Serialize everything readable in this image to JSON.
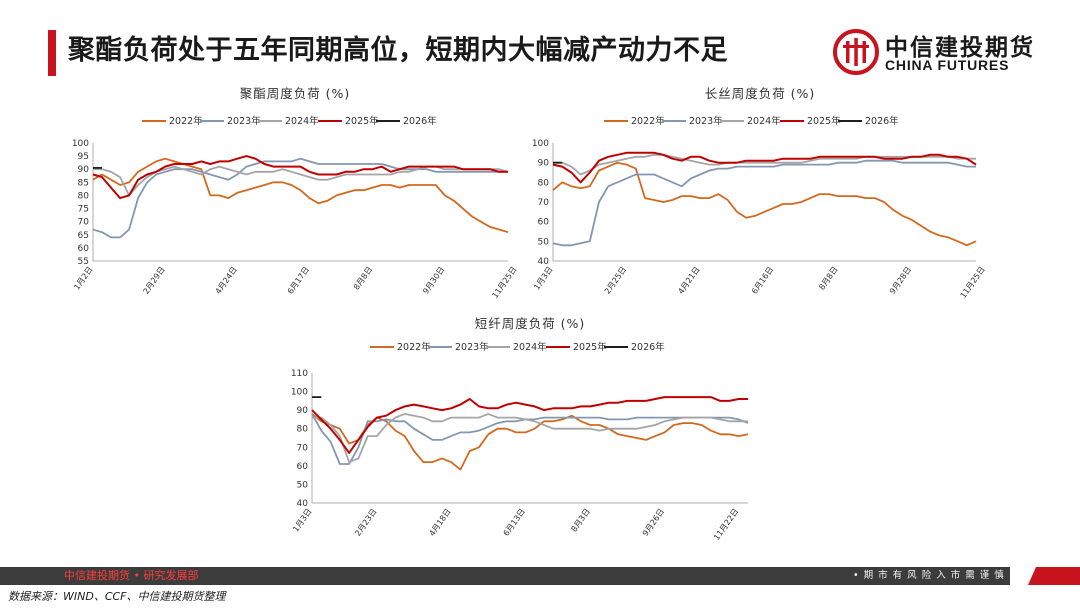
{
  "page_title": "聚酯负荷处于五年同期高位，短期内大幅减产动力不足",
  "logo": {
    "cn": "中信建投期货",
    "en": "CHINA FUTURES",
    "icon": "citic-logo-icon"
  },
  "footer": {
    "left": "中信建投期货 • 研究发展部",
    "right": "• 期 市 有 风 险    入 市 需 谨 慎",
    "source": "数据来源：WIND、CCF、中信建投期货整理"
  },
  "colors": {
    "2022年": "#d2691e",
    "2023年": "#8497b0",
    "2024年": "#a5a5a5",
    "2025年": "#c00000",
    "2026年": "#1f1f1f",
    "brand_red": "#c8141e"
  },
  "chart_data": [
    {
      "type": "line",
      "title": "聚酯周度负荷 (%)",
      "x_tick_labels": [
        "1月2日",
        "2月29日",
        "4月24日",
        "6月17日",
        "8月8日",
        "9月30日",
        "11月25日"
      ],
      "x_tick_weeks": [
        0,
        8,
        16,
        24,
        31,
        39,
        47
      ],
      "ylim": [
        55,
        100
      ],
      "yticks": [
        55,
        60,
        65,
        70,
        75,
        80,
        85,
        90,
        95,
        100
      ],
      "legend": "top",
      "grid": false,
      "series": [
        {
          "name": "2022年",
          "values": [
            86,
            88,
            86,
            84,
            85,
            89,
            91,
            93,
            94,
            93,
            92,
            91,
            90,
            80,
            80,
            79,
            81,
            82,
            83,
            84,
            85,
            85,
            84,
            82,
            79,
            77,
            78,
            80,
            81,
            82,
            82,
            83,
            84,
            84,
            83,
            84,
            84,
            84,
            84,
            80,
            78,
            75,
            72,
            70,
            68,
            67,
            66
          ]
        },
        {
          "name": "2023年",
          "values": [
            67,
            66,
            64,
            64,
            67,
            79,
            85,
            88,
            89,
            90,
            90,
            90,
            89,
            88,
            87,
            86,
            88,
            91,
            92,
            93,
            93,
            93,
            93,
            94,
            93,
            92,
            92,
            92,
            92,
            92,
            92,
            92,
            92,
            91,
            90,
            90,
            90,
            90,
            89,
            89,
            89,
            89,
            89,
            89,
            89,
            89,
            89
          ]
        },
        {
          "name": "2024年",
          "values": [
            90,
            90,
            89,
            87,
            80,
            84,
            87,
            89,
            90,
            91,
            90,
            89,
            88,
            90,
            91,
            90,
            89,
            88,
            89,
            89,
            89,
            90,
            89,
            88,
            87,
            86,
            86,
            87,
            88,
            88,
            88,
            88,
            88,
            88,
            89,
            89,
            90,
            91,
            91,
            90,
            90,
            90,
            90,
            90,
            90,
            90,
            89
          ]
        },
        {
          "name": "2025年",
          "values": [
            88,
            87,
            83,
            79,
            80,
            86,
            88,
            89,
            91,
            92,
            92,
            92,
            93,
            92,
            93,
            93,
            94,
            95,
            94,
            92,
            91,
            91,
            91,
            91,
            89,
            88,
            88,
            88,
            89,
            89,
            90,
            90,
            91,
            89,
            90,
            91,
            91,
            91,
            91,
            91,
            91,
            90,
            90,
            90,
            90,
            89,
            89
          ]
        },
        {
          "name": "2026年",
          "values": [
            90.5,
            90.5
          ]
        }
      ]
    },
    {
      "type": "line",
      "title": "长丝周度负荷 (%)",
      "x_tick_labels": [
        "1月3日",
        "2月25日",
        "4月21日",
        "6月16日",
        "8月8日",
        "9月28日",
        "11月25日"
      ],
      "x_tick_weeks": [
        0,
        8,
        16,
        24,
        31,
        39,
        47
      ],
      "ylim": [
        40,
        100
      ],
      "yticks": [
        40,
        50,
        60,
        70,
        80,
        90,
        100
      ],
      "legend": "top",
      "grid": false,
      "series": [
        {
          "name": "2022年",
          "values": [
            76,
            80,
            78,
            77,
            78,
            86,
            88,
            90,
            89,
            87,
            72,
            71,
            70,
            71,
            73,
            73,
            72,
            72,
            74,
            71,
            65,
            62,
            63,
            65,
            67,
            69,
            69,
            70,
            72,
            74,
            74,
            73,
            73,
            73,
            72,
            72,
            70,
            66,
            63,
            61,
            58,
            55,
            53,
            52,
            50,
            48,
            50
          ]
        },
        {
          "name": "2023年",
          "values": [
            49,
            48,
            48,
            49,
            50,
            70,
            78,
            80,
            82,
            84,
            84,
            84,
            82,
            80,
            78,
            82,
            84,
            86,
            87,
            87,
            88,
            88,
            88,
            88,
            88,
            89,
            89,
            89,
            89,
            89,
            89,
            90,
            90,
            90,
            91,
            91,
            91,
            91,
            90,
            90,
            90,
            90,
            90,
            90,
            89,
            88,
            88
          ]
        },
        {
          "name": "2024年",
          "values": [
            90,
            90,
            88,
            84,
            86,
            89,
            90,
            91,
            92,
            93,
            93,
            94,
            94,
            93,
            92,
            91,
            90,
            89,
            89,
            90,
            90,
            90,
            90,
            90,
            90,
            90,
            90,
            90,
            91,
            92,
            92,
            92,
            92,
            92,
            93,
            93,
            93,
            93,
            93,
            93,
            93,
            93,
            93,
            93,
            92,
            92,
            92
          ]
        },
        {
          "name": "2025年",
          "values": [
            89,
            88,
            85,
            80,
            85,
            91,
            93,
            94,
            95,
            95,
            95,
            95,
            94,
            92,
            91,
            93,
            93,
            91,
            90,
            90,
            90,
            91,
            91,
            91,
            91,
            92,
            92,
            92,
            92,
            93,
            93,
            93,
            93,
            93,
            93,
            93,
            92,
            92,
            92,
            93,
            93,
            94,
            94,
            93,
            93,
            92,
            89
          ]
        },
        {
          "name": "2026年",
          "values": [
            90,
            90
          ]
        }
      ]
    },
    {
      "type": "line",
      "title": "短纤周度负荷 (%)",
      "x_tick_labels": [
        "1月3日",
        "2月23日",
        "4月18日",
        "6月13日",
        "8月3日",
        "9月26日",
        "11月22日"
      ],
      "x_tick_weeks": [
        0,
        7,
        15,
        23,
        30,
        38,
        46
      ],
      "ylim": [
        40,
        110
      ],
      "yticks": [
        40,
        50,
        60,
        70,
        80,
        90,
        100,
        110
      ],
      "legend": "top",
      "grid": false,
      "series": [
        {
          "name": "2022年",
          "values": [
            88,
            84,
            82,
            80,
            72,
            74,
            82,
            86,
            84,
            79,
            76,
            68,
            62,
            62,
            64,
            62,
            58,
            68,
            70,
            77,
            80,
            80,
            78,
            78,
            80,
            84,
            84,
            85,
            87,
            84,
            82,
            82,
            80,
            77,
            76,
            75,
            74,
            76,
            78,
            82,
            83,
            83,
            82,
            79,
            77,
            77,
            76,
            77
          ]
        },
        {
          "name": "2023年",
          "values": [
            88,
            79,
            73,
            61,
            61,
            70,
            84,
            84,
            85,
            84,
            84,
            80,
            77,
            74,
            74,
            76,
            78,
            78,
            79,
            81,
            83,
            84,
            84,
            85,
            85,
            86,
            86,
            86,
            86,
            86,
            86,
            86,
            85,
            85,
            85,
            86,
            86,
            86,
            86,
            86,
            86,
            86,
            86,
            86,
            86,
            86,
            85,
            83
          ]
        },
        {
          "name": "2024年",
          "values": [
            86,
            86,
            82,
            76,
            62,
            64,
            76,
            76,
            82,
            86,
            88,
            87,
            86,
            84,
            84,
            86,
            86,
            86,
            86,
            88,
            86,
            86,
            86,
            85,
            84,
            82,
            80,
            80,
            80,
            80,
            80,
            79,
            80,
            80,
            80,
            80,
            81,
            82,
            84,
            85,
            86,
            86,
            86,
            86,
            85,
            84,
            84,
            84
          ]
        },
        {
          "name": "2025年",
          "values": [
            90,
            85,
            80,
            74,
            67,
            74,
            81,
            86,
            87,
            90,
            92,
            93,
            92,
            91,
            90,
            91,
            93,
            96,
            92,
            91,
            91,
            93,
            94,
            93,
            92,
            90,
            91,
            91,
            91,
            92,
            92,
            93,
            94,
            94,
            95,
            95,
            95,
            96,
            97,
            97,
            97,
            97,
            97,
            97,
            95,
            95,
            96,
            96
          ]
        },
        {
          "name": "2026年",
          "values": [
            97,
            97
          ]
        }
      ]
    }
  ]
}
